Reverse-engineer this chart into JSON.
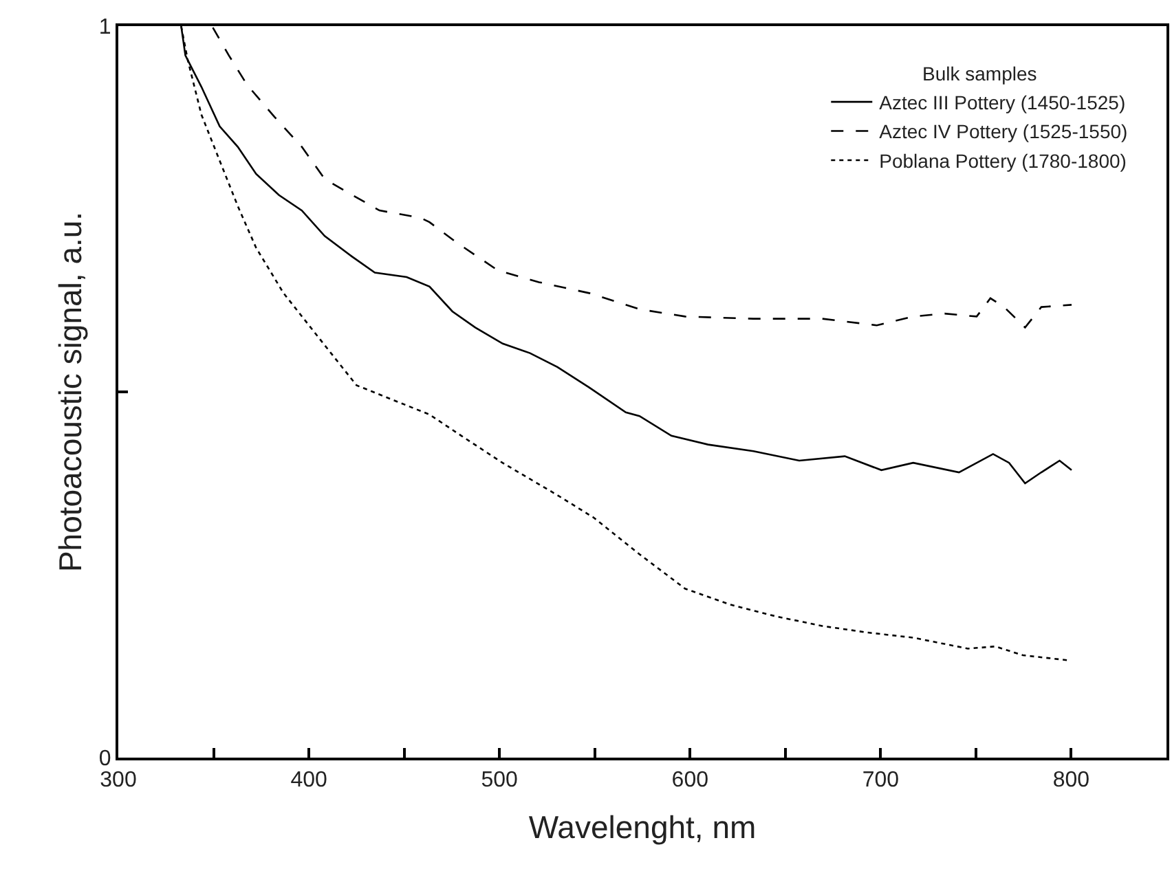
{
  "chart_data": {
    "type": "line",
    "xlabel": "Wavelenght, nm",
    "ylabel": "Photoacoustic signal, a.u.",
    "legend_title": "Bulk samples",
    "xlim": [
      300,
      850
    ],
    "xticks": [
      300,
      {
        "value": 350,
        "label": null
      },
      400,
      {
        "value": 450,
        "label": null
      },
      500,
      {
        "value": 550,
        "label": null
      },
      600,
      {
        "value": 650,
        "label": null
      },
      700,
      {
        "value": 750,
        "label": null
      },
      800
    ],
    "ylim": [
      0,
      1
    ],
    "yticks": [
      0,
      {
        "value": 0.5,
        "label": null
      },
      1
    ],
    "legend": "top right",
    "marker": "none",
    "series": [
      {
        "name": "Aztec III Pottery (1450-1525)",
        "color": "#000000",
        "line_style": "solid",
        "x": [
          333,
          335.2,
          343.6,
          353.2,
          362.7,
          372.3,
          384.3,
          396.3,
          408.3,
          422.6,
          434.6,
          451.3,
          463.3,
          475.3,
          487.3,
          501.7,
          516,
          530.4,
          547.1,
          566.3,
          573.5,
          590.2,
          609.4,
          633.3,
          657.3,
          681.2,
          700.4,
          717.1,
          741.1,
          759,
          767.4,
          775.8,
          784.3,
          793.9,
          800.2
        ],
        "values": [
          1.0,
          0.96,
          0.917,
          0.863,
          0.835,
          0.798,
          0.769,
          0.748,
          0.713,
          0.685,
          0.663,
          0.657,
          0.644,
          0.61,
          0.588,
          0.566,
          0.553,
          0.534,
          0.506,
          0.472,
          0.467,
          0.44,
          0.428,
          0.419,
          0.406,
          0.412,
          0.393,
          0.403,
          0.39,
          0.415,
          0.403,
          0.375,
          0.39,
          0.406,
          0.393
        ]
      },
      {
        "name": "Aztec IV Pottery (1525-1550)",
        "color": "#000000",
        "line_style": "dashed",
        "x": [
          349.6,
          358,
          367.5,
          381.9,
          396.3,
          408.3,
          420.2,
          437,
          458.5,
          463.3,
          477.6,
          499.2,
          520.7,
          547.1,
          573.5,
          597.4,
          633.3,
          669.3,
          698,
          717.1,
          733.6,
          750.4,
          757.6,
          764.8,
          775.8,
          784.3,
          800.2
        ],
        "values": [
          0.998,
          0.96,
          0.92,
          0.876,
          0.835,
          0.791,
          0.773,
          0.748,
          0.738,
          0.732,
          0.704,
          0.666,
          0.65,
          0.635,
          0.613,
          0.603,
          0.6,
          0.6,
          0.591,
          0.603,
          0.607,
          0.603,
          0.628,
          0.616,
          0.588,
          0.616,
          0.619
        ]
      },
      {
        "name": "Poblana Pottery (1780-1800)",
        "color": "#000000",
        "line_style": "dotted",
        "x": [
          333,
          336.4,
          343.6,
          353.2,
          362.7,
          372.3,
          386.7,
          405.8,
          425,
          448.9,
          463.3,
          480,
          501.6,
          530.3,
          549.5,
          573.5,
          597.4,
          621.3,
          645.3,
          669.3,
          693.2,
          717.1,
          745.8,
          760.2,
          774.6,
          798.6
        ],
        "values": [
          1.0,
          0.954,
          0.879,
          0.816,
          0.754,
          0.697,
          0.635,
          0.572,
          0.509,
          0.484,
          0.469,
          0.44,
          0.403,
          0.359,
          0.328,
          0.278,
          0.231,
          0.209,
          0.193,
          0.18,
          0.171,
          0.164,
          0.149,
          0.152,
          0.14,
          0.133
        ]
      }
    ]
  }
}
